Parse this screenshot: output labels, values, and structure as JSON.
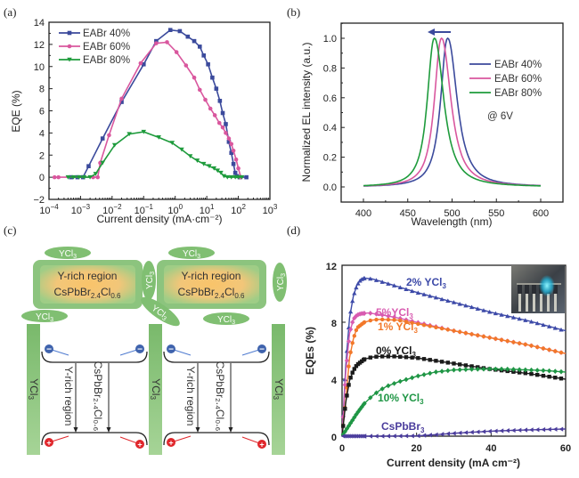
{
  "figure": {
    "panels": [
      "(a)",
      "(b)",
      "(c)",
      "(d)"
    ]
  },
  "chart_data": [
    {
      "id": "a",
      "type": "line",
      "xscale": "log",
      "title": "",
      "xlabel": "Current density (mA·cm⁻²)",
      "ylabel": "EQE (%)",
      "xlim": [
        0.0001,
        1000
      ],
      "ylim": [
        -2,
        14
      ],
      "xticks": [
        "10⁻⁴",
        "10⁻³",
        "10⁻²",
        "10⁻¹",
        "10⁰",
        "10¹",
        "10²",
        "10³"
      ],
      "xtick_exp": [
        -4,
        -3,
        -2,
        -1,
        0,
        1,
        2,
        3
      ],
      "yticks": [
        -2,
        0,
        2,
        4,
        6,
        8,
        10,
        12,
        14
      ],
      "legend_position": "top-left",
      "series": [
        {
          "name": "EABr 40%",
          "color": "#3b4a9c",
          "marker": "square",
          "x": [
            0.0005,
            0.0008,
            0.0012,
            0.0018,
            0.005,
            0.02,
            0.1,
            0.25,
            0.7,
            1.4,
            2.5,
            4,
            6,
            8,
            11,
            15,
            20,
            26,
            32,
            40,
            50,
            60,
            70,
            80,
            90,
            110,
            180
          ],
          "y": [
            0,
            0,
            0,
            1.0,
            3.5,
            6.8,
            10.2,
            12.3,
            13.3,
            13.2,
            12.7,
            12.3,
            11.8,
            11.0,
            10.2,
            9.0,
            8.0,
            6.9,
            5.8,
            4.8,
            3.2,
            2.2,
            1.2,
            0.4,
            0.1,
            0,
            0
          ]
        },
        {
          "name": "EABr 60%",
          "color": "#d9579e",
          "marker": "circle",
          "x": [
            0.00015,
            0.0002,
            0.0025,
            0.0035,
            0.0042,
            0.008,
            0.02,
            0.08,
            0.25,
            0.55,
            1.1,
            2.2,
            4,
            6,
            9,
            13,
            18,
            25,
            32,
            40,
            50,
            60,
            70,
            85,
            100,
            120
          ],
          "y": [
            0,
            0,
            0,
            0,
            1.3,
            3.8,
            7.1,
            10.3,
            12.1,
            12.2,
            11.3,
            10.1,
            9.0,
            7.9,
            7.0,
            6.2,
            5.6,
            4.9,
            4.5,
            4.0,
            3.5,
            3.0,
            2.4,
            1.6,
            0.8,
            0
          ]
        },
        {
          "name": "EABr 80%",
          "color": "#1e9b3c",
          "marker": "triangle-down",
          "x": [
            0.0004,
            0.0006,
            0.0009,
            0.0013,
            0.002,
            0.003,
            0.005,
            0.012,
            0.035,
            0.1,
            0.3,
            0.8,
            1.6,
            3,
            5,
            8,
            12,
            17,
            22,
            28,
            35,
            45,
            60,
            80,
            100,
            130
          ],
          "y": [
            0,
            0,
            0,
            0,
            0,
            0.3,
            1.3,
            2.9,
            3.9,
            4.1,
            3.6,
            3.1,
            2.5,
            1.9,
            1.5,
            1.2,
            1.0,
            0.8,
            0.6,
            0.4,
            0.1,
            0,
            0,
            0,
            0,
            0
          ]
        }
      ]
    },
    {
      "id": "b",
      "type": "line",
      "title": "",
      "xlabel": "Wavelength (nm)",
      "ylabel": "Normalized EL intensity (a.u.)",
      "xlim": [
        385,
        610
      ],
      "ylim": [
        -0.1,
        1.1
      ],
      "xticks": [
        400,
        450,
        500,
        550,
        600
      ],
      "yticks": [
        "0.0",
        "0.2",
        "0.4",
        "0.6",
        "0.8",
        "1.0"
      ],
      "legend_position": "right",
      "annotation": "@ 6V",
      "shift_arrow": "blue-shift (arrow pointing to shorter wavelength)",
      "arrow_color": "#3b4a9c",
      "series": [
        {
          "name": "EABr 40%",
          "color": "#3b4a9c",
          "peak_nm": 495,
          "fwhm_nm": 22
        },
        {
          "name": "EABr 60%",
          "color": "#d9579e",
          "peak_nm": 488,
          "fwhm_nm": 22
        },
        {
          "name": "EABr 80%",
          "color": "#1e9b3c",
          "peak_nm": 480,
          "fwhm_nm": 22
        }
      ]
    },
    {
      "id": "d",
      "type": "line",
      "title": "",
      "xlabel": "Current density (mA cm⁻²)",
      "ylabel": "EQEs (%)",
      "xlim": [
        0,
        60
      ],
      "ylim": [
        0,
        12
      ],
      "xticks": [
        0,
        20,
        40,
        60
      ],
      "yticks": [
        0,
        4,
        8,
        12
      ],
      "inset": "photo of glowing blue device",
      "series": [
        {
          "name": "2% YCl₃",
          "label": "2% YCl₃",
          "color": "#3d4aa8",
          "marker": "triangle-up",
          "x": [
            0,
            1,
            2,
            3,
            4,
            5,
            6,
            8,
            10,
            15,
            20,
            30,
            40,
            50,
            60
          ],
          "y": [
            0,
            5.0,
            8.3,
            9.8,
            10.6,
            11.0,
            11.1,
            11.05,
            10.9,
            10.5,
            10.1,
            9.4,
            8.7,
            8.1,
            7.4
          ]
        },
        {
          "name": "5%YCl₃",
          "label": "5%YCl₃",
          "color": "#d85bb0",
          "marker": "diamond",
          "x": [
            0,
            1,
            2,
            3,
            4,
            5,
            7,
            10,
            15,
            20,
            30,
            40,
            50,
            60
          ],
          "y": [
            0,
            4.5,
            7.2,
            8.2,
            8.5,
            8.6,
            8.65,
            8.55,
            8.3,
            8.0,
            7.4,
            6.9,
            6.4,
            5.8
          ]
        },
        {
          "name": "1% YCl₃",
          "label": "1% YCl₃",
          "color": "#f2782a",
          "marker": "circle",
          "x": [
            0,
            1,
            2,
            3,
            4,
            6,
            8,
            10,
            15,
            20,
            30,
            40,
            50,
            60
          ],
          "y": [
            0,
            2.5,
            5.5,
            6.8,
            7.6,
            8.0,
            8.15,
            8.2,
            8.15,
            7.9,
            7.4,
            6.9,
            6.4,
            5.8
          ]
        },
        {
          "name": "0% YCl₃",
          "label": "0% YCl₃",
          "color": "#1a1a1a",
          "marker": "square",
          "x": [
            0,
            1,
            2,
            3,
            4,
            6,
            8,
            10,
            14,
            20,
            30,
            40,
            50,
            60
          ],
          "y": [
            0,
            2.4,
            3.9,
            4.6,
            5.0,
            5.4,
            5.55,
            5.6,
            5.6,
            5.5,
            5.1,
            4.7,
            4.4,
            4.0
          ]
        },
        {
          "name": "10% YCl₃",
          "label": "10% YCl₃",
          "color": "#1f9645",
          "marker": "diamond",
          "x": [
            0,
            2,
            4,
            6,
            8,
            10,
            12,
            15,
            20,
            25,
            30,
            35,
            40,
            45,
            50,
            55,
            60
          ],
          "y": [
            0,
            0.8,
            1.6,
            2.3,
            2.8,
            3.2,
            3.5,
            3.8,
            4.2,
            4.5,
            4.65,
            4.7,
            4.72,
            4.7,
            4.65,
            4.6,
            4.5
          ]
        },
        {
          "name": "CsPbBr₃",
          "label": "CsPbBr₃",
          "color": "#4a3c9c",
          "marker": "triangle-left",
          "x": [
            0,
            10,
            20,
            25,
            30,
            35,
            40,
            45,
            50,
            55,
            60
          ],
          "y": [
            0,
            0,
            0.02,
            0.1,
            0.2,
            0.28,
            0.35,
            0.4,
            0.44,
            0.47,
            0.5
          ]
        }
      ]
    }
  ],
  "diagram_c": {
    "domain_text_1": "Y-rich region",
    "domain_text_2_main": "CsPbBr",
    "domain_text_2_sub1": "2.4",
    "domain_text_2_mid": "Cl",
    "domain_text_2_sub2": "0.6",
    "ycl3": "YCl",
    "ycl3_sub": "3",
    "vertical_y_rich": "Y-rich region",
    "vertical_formula": "CsPbBr₂.₄Cl₀.₆",
    "electron": "−",
    "hole": "+",
    "colors": {
      "green": "#8cc47e",
      "green_dark": "#6db465",
      "core": "#f7c16a",
      "electron": "#3f63ad",
      "hole": "#e0262b",
      "electron_arrow": "#4f7bd0",
      "hole_arrow": "#e0262b"
    }
  }
}
